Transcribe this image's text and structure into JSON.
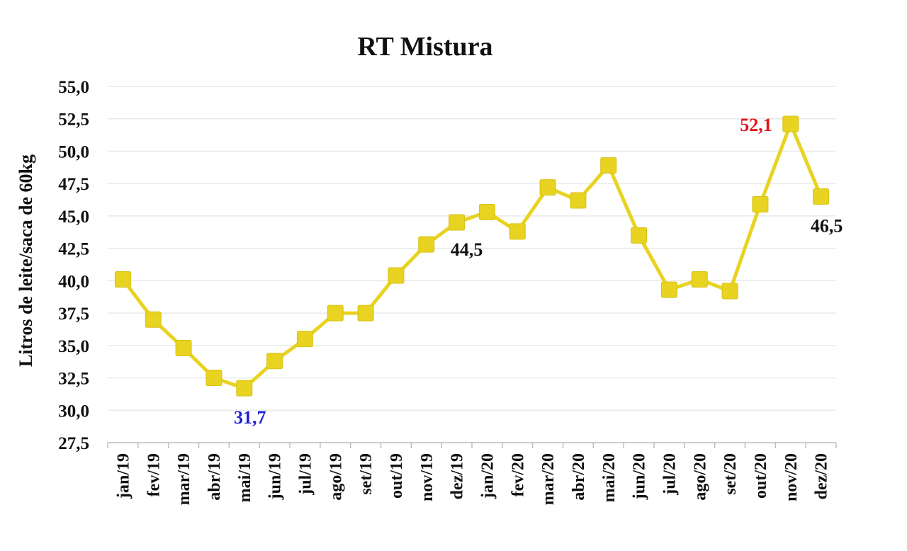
{
  "chart_data": {
    "type": "line",
    "title": "RT Mistura",
    "ylabel": "Litros de leite/saca de 60kg",
    "xlabel": "",
    "ylim": [
      27.5,
      55.0
    ],
    "ytick_step": 2.5,
    "yticks": [
      "27,5",
      "30,0",
      "32,5",
      "35,0",
      "37,5",
      "40,0",
      "42,5",
      "45,0",
      "47,5",
      "50,0",
      "52,5",
      "55,0"
    ],
    "grid": true,
    "legend": "none",
    "categories": [
      "jan/19",
      "fev/19",
      "mar/19",
      "abr/19",
      "mai/19",
      "jun/19",
      "jul/19",
      "ago/19",
      "set/19",
      "out/19",
      "nov/19",
      "dez/19",
      "jan/20",
      "fev/20",
      "mar/20",
      "abr/20",
      "mai/20",
      "jun/20",
      "jul/20",
      "ago/20",
      "set/20",
      "out/20",
      "nov/20",
      "dez/20"
    ],
    "series": [
      {
        "color": "#e8d321",
        "marker": "square",
        "values": [
          40.1,
          37.0,
          34.8,
          32.5,
          31.7,
          33.8,
          35.5,
          37.5,
          37.5,
          40.4,
          42.8,
          44.5,
          45.3,
          43.8,
          47.2,
          46.2,
          48.9,
          43.5,
          39.3,
          40.1,
          39.2,
          45.9,
          52.1,
          46.5
        ]
      }
    ],
    "annotations": [
      {
        "index": 4,
        "text": "31,7",
        "color": "#1f1fd6",
        "position": "below"
      },
      {
        "index": 11,
        "text": "44,5",
        "color": "#111111",
        "position": "below-right"
      },
      {
        "index": 22,
        "text": "52,1",
        "color": "#e3151a",
        "position": "left"
      },
      {
        "index": 23,
        "text": "46,5",
        "color": "#111111",
        "position": "below"
      }
    ]
  }
}
